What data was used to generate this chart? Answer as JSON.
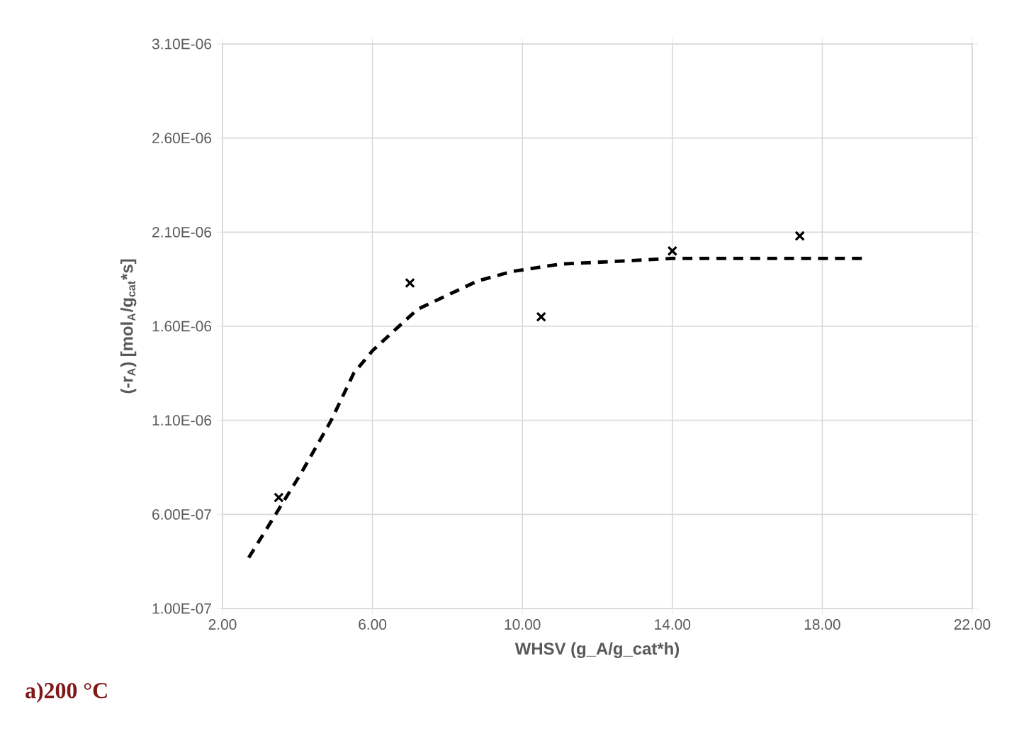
{
  "chart_data": {
    "type": "scatter",
    "xlabel": "WHSV (g_A/g_cat*h)",
    "ylabel": "(-r$_{A}$) [mol$_{A}$/g$_{cat}$*s]",
    "annotations": [
      "a)200 °C"
    ],
    "xlim": [
      2,
      22
    ],
    "ylim": [
      1e-07,
      3.1e-06
    ],
    "xticks": [
      {
        "value": 2,
        "label": "2.00"
      },
      {
        "value": 6,
        "label": "6.00"
      },
      {
        "value": 10,
        "label": "10.00"
      },
      {
        "value": 14,
        "label": "14.00"
      },
      {
        "value": 18,
        "label": "18.00"
      },
      {
        "value": 22,
        "label": "22.00"
      }
    ],
    "yticks": [
      {
        "value": 1e-07,
        "label": "1.00E-07"
      },
      {
        "value": 6e-07,
        "label": "6.00E-07"
      },
      {
        "value": 1.1e-06,
        "label": "1.10E-06"
      },
      {
        "value": 1.6e-06,
        "label": "1.60E-06"
      },
      {
        "value": 2.1e-06,
        "label": "2.10E-06"
      },
      {
        "value": 2.6e-06,
        "label": "2.60E-06"
      },
      {
        "value": 3.1e-06,
        "label": "3.10E-06"
      }
    ],
    "grid": true,
    "series": [
      {
        "color": "#000000",
        "marker": "cross",
        "x": [
          3.5,
          7.0,
          10.5,
          14.0,
          17.4
        ],
        "values": [
          6.9e-07,
          1.83e-06,
          1.65e-06,
          2e-06,
          2.08e-06
        ]
      },
      {
        "type": "line",
        "color": "#000000",
        "line_style": "dashed",
        "x": [
          2.7,
          4.1,
          4.9,
          5.5,
          6.0,
          7.2,
          8.8,
          9.7,
          11.0,
          14.0,
          19.1
        ],
        "values": [
          3.7e-07,
          8.2e-07,
          1.1e-06,
          1.35e-06,
          1.47e-06,
          1.69e-06,
          1.84e-06,
          1.89e-06,
          1.93e-06,
          1.96e-06,
          1.96e-06
        ]
      }
    ]
  }
}
